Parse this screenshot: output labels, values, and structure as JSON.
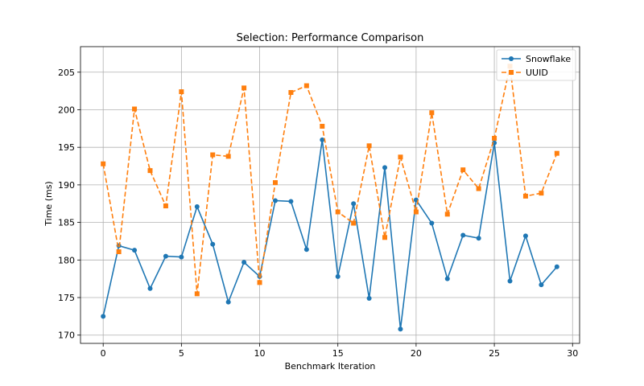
{
  "chart_data": {
    "type": "line",
    "title": "Selection: Performance Comparison",
    "xlabel": "Benchmark Iteration",
    "ylabel": "Time (ms)",
    "xlim": [
      -1.45,
      30.45
    ],
    "ylim": [
      168.9,
      208.4
    ],
    "xticks": [
      0,
      5,
      10,
      15,
      20,
      25,
      30
    ],
    "yticks": [
      170,
      175,
      180,
      185,
      190,
      195,
      200,
      205
    ],
    "grid": true,
    "legend_position": "top-right",
    "x": [
      0,
      1,
      2,
      3,
      4,
      5,
      6,
      7,
      8,
      9,
      10,
      11,
      12,
      13,
      14,
      15,
      16,
      17,
      18,
      19,
      20,
      21,
      22,
      23,
      24,
      25,
      26,
      27,
      28,
      29
    ],
    "series": [
      {
        "name": "Snowflake",
        "color": "#1f77b4",
        "marker": "circle",
        "line_style": "solid",
        "values": [
          172.5,
          181.9,
          181.3,
          176.2,
          180.5,
          180.4,
          187.1,
          182.1,
          174.4,
          179.7,
          177.8,
          187.9,
          187.8,
          181.4,
          196.0,
          177.8,
          187.5,
          174.9,
          192.3,
          170.8,
          188.0,
          184.9,
          177.5,
          183.3,
          182.9,
          195.6,
          177.2,
          183.2,
          176.7,
          179.1
        ]
      },
      {
        "name": "UUID",
        "color": "#ff7f0e",
        "marker": "square",
        "line_style": "dashed",
        "values": [
          192.8,
          181.1,
          200.1,
          191.9,
          187.2,
          202.4,
          175.5,
          194.0,
          193.8,
          202.9,
          177.0,
          190.3,
          202.3,
          203.2,
          197.8,
          186.4,
          184.9,
          195.2,
          183.0,
          193.7,
          186.4,
          199.6,
          186.1,
          192.0,
          189.5,
          196.2,
          205.8,
          188.5,
          188.9,
          194.2
        ]
      }
    ]
  }
}
